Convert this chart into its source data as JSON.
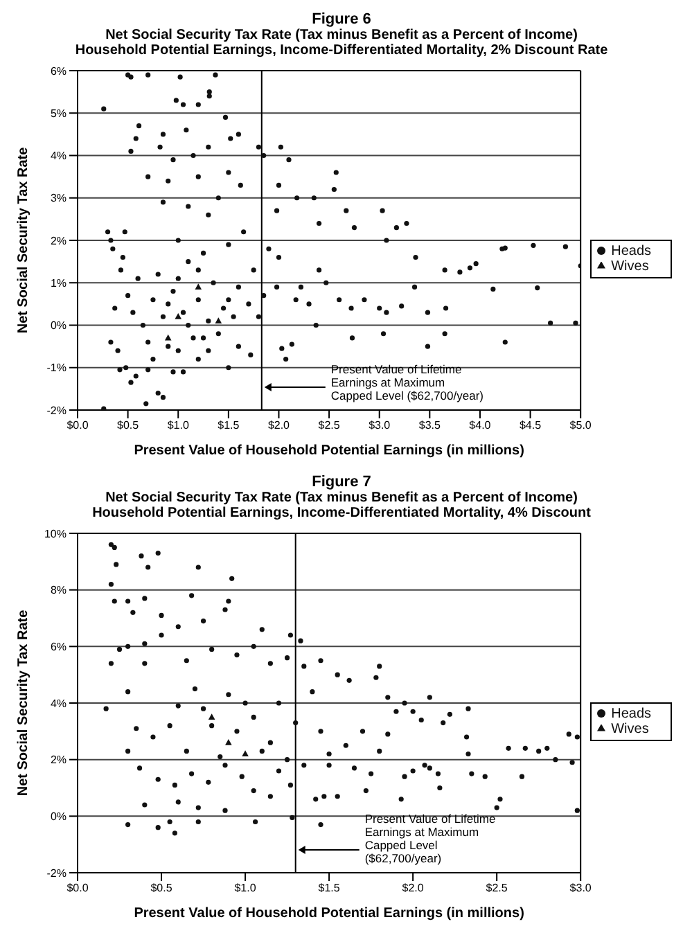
{
  "chart_data": [
    {
      "type": "scatter",
      "title": "Figure 6",
      "subtitle": "Net Social Security Tax Rate (Tax minus Benefit as a Percent of Income)\nHousehold Potential Earnings, Income-Differentiated Mortality, 2% Discount Rate",
      "xlabel": "Present Value of Household Potential Earnings (in millions)",
      "ylabel": "Net Social Security Tax Rate",
      "xlim": [
        0,
        5
      ],
      "xticks": [
        {
          "value": 0,
          "label": "$0.0"
        },
        {
          "value": 0.5,
          "label": "$0.5"
        },
        {
          "value": 1,
          "label": "$1.0"
        },
        {
          "value": 1.5,
          "label": "$1.5"
        },
        {
          "value": 2,
          "label": "$2.0"
        },
        {
          "value": 2.5,
          "label": "$2.5"
        },
        {
          "value": 3,
          "label": "$3.0"
        },
        {
          "value": 3.5,
          "label": "$3.5"
        },
        {
          "value": 4,
          "label": "$4.0"
        },
        {
          "value": 4.5,
          "label": "$4.5"
        },
        {
          "value": 5,
          "label": "$5.0"
        }
      ],
      "ylim": [
        -2,
        6
      ],
      "yticks": [
        {
          "value": -2,
          "label": "-2%"
        },
        {
          "value": -1,
          "label": "-1%"
        },
        {
          "value": 0,
          "label": "0%"
        },
        {
          "value": 1,
          "label": "1%"
        },
        {
          "value": 2,
          "label": "2%"
        },
        {
          "value": 3,
          "label": "3%"
        },
        {
          "value": 4,
          "label": "4%"
        },
        {
          "value": 5,
          "label": "5%"
        },
        {
          "value": 6,
          "label": "6%"
        }
      ],
      "grid": "y",
      "legend": "right",
      "ref_lines": [
        {
          "axis": "x",
          "value": 1.83,
          "label": "Present Value of Lifetime\nEarnings at Maximum\nCapped Level ($62,700/year)",
          "color": "#000000"
        }
      ],
      "series": [
        {
          "name": "Heads",
          "color": "#111111",
          "marker": "circle",
          "x": [
            0.26,
            0.5,
            0.53,
            0.7,
            1.02,
            1.37,
            1.31,
            1.31,
            0.98,
            1.2,
            1.05,
            1.47,
            0.61,
            0.85,
            1.08,
            1.6,
            1.52,
            0.58,
            0.82,
            0.53,
            1.8,
            2.02,
            2.1,
            1.85,
            0.7,
            0.9,
            1.2,
            1.5,
            1.62,
            2.0,
            2.18,
            2.35,
            2.57,
            2.55,
            1.98,
            2.4,
            2.67,
            2.75,
            3.03,
            3.17,
            3.27,
            3.07,
            3.36,
            3.35,
            3.48,
            3.65,
            3.8,
            3.9,
            3.96,
            4.22,
            4.25,
            4.53,
            4.85,
            5.0,
            4.13,
            4.57,
            4.7,
            4.95,
            4.25,
            3.65,
            3.48,
            3.66,
            3.22,
            3.07,
            3.0,
            3.04,
            2.73,
            2.85,
            2.72,
            2.6,
            2.47,
            2.4,
            2.3,
            2.37,
            2.22,
            2.07,
            2.03,
            2.13,
            2.17,
            1.98,
            1.9,
            2.0,
            1.72,
            1.6,
            1.5,
            1.3,
            1.2,
            1.05,
            0.95,
            0.85,
            0.8,
            0.68,
            0.26,
            0.48,
            0.42,
            0.53,
            0.58,
            0.7,
            0.33,
            0.4,
            0.3,
            0.33,
            0.35,
            0.45,
            0.47,
            0.43,
            0.37,
            0.5,
            0.55,
            0.6,
            0.65,
            0.7,
            0.75,
            0.8,
            0.85,
            0.9,
            0.95,
            1.0,
            1.05,
            1.1,
            1.15,
            1.2,
            1.25,
            1.3,
            1.35,
            1.4,
            1.45,
            1.5,
            1.55,
            1.6,
            1.65,
            1.7,
            1.75,
            1.8,
            1.85,
            1.0,
            1.1,
            0.85,
            1.3,
            1.4,
            0.95,
            1.15,
            1.3,
            1.0,
            1.2,
            0.9,
            1.1,
            0.75,
            1.25,
            1.5
          ],
          "values": [
            5.1,
            5.9,
            5.85,
            5.9,
            5.85,
            5.9,
            5.5,
            5.4,
            5.3,
            5.2,
            5.2,
            4.9,
            4.7,
            4.5,
            4.6,
            4.5,
            4.4,
            4.4,
            4.2,
            4.1,
            4.2,
            4.2,
            3.9,
            4.0,
            3.5,
            3.4,
            3.5,
            3.6,
            3.3,
            3.3,
            3.0,
            3.0,
            3.6,
            3.2,
            2.7,
            2.4,
            2.7,
            2.3,
            2.7,
            2.3,
            2.4,
            2.0,
            1.6,
            0.9,
            0.3,
            1.3,
            1.25,
            1.35,
            1.45,
            1.8,
            1.82,
            1.88,
            1.85,
            1.4,
            0.85,
            0.88,
            0.05,
            0.05,
            -0.4,
            -0.2,
            -0.5,
            0.4,
            0.45,
            0.3,
            0.4,
            -0.2,
            -0.3,
            0.6,
            0.4,
            0.6,
            1.0,
            1.3,
            0.5,
            0.0,
            0.9,
            -0.8,
            -0.55,
            -0.45,
            0.6,
            0.9,
            1.8,
            1.6,
            -0.7,
            -0.5,
            -1.0,
            -0.6,
            -0.8,
            -1.1,
            -1.1,
            -1.7,
            -1.6,
            -1.85,
            -1.97,
            -1.0,
            -1.05,
            -1.35,
            -1.2,
            -1.05,
            -0.4,
            -0.6,
            2.2,
            2.0,
            1.8,
            1.6,
            2.2,
            1.3,
            0.4,
            0.7,
            0.3,
            1.1,
            0.0,
            -0.4,
            0.6,
            1.2,
            0.2,
            -0.5,
            0.8,
            -0.6,
            0.3,
            1.5,
            -0.3,
            0.6,
            1.7,
            0.1,
            1.0,
            -0.2,
            0.4,
            1.9,
            0.2,
            0.9,
            2.2,
            0.5,
            1.3,
            0.2,
            0.7,
            2.0,
            2.8,
            2.9,
            2.6,
            3.0,
            3.9,
            4.0,
            4.2,
            1.1,
            1.3,
            0.5,
            0.0,
            -0.8,
            -0.3,
            0.6
          ]
        },
        {
          "name": "Wives",
          "color": "#111111",
          "marker": "triangle",
          "x": [
            1.0,
            1.2,
            1.4,
            0.9
          ],
          "values": [
            0.2,
            0.9,
            0.1,
            -0.3
          ]
        }
      ]
    },
    {
      "type": "scatter",
      "title": "Figure 7",
      "subtitle": "Net Social Security Tax Rate (Tax minus Benefit as a Percent of Income)\nHousehold Potential Earnings, Income-Differentiated Mortality, 4% Discount",
      "xlabel": "Present Value of Household Potential Earnings (in millions)",
      "ylabel": "Net Social Security Tax Rate",
      "xlim": [
        0,
        3
      ],
      "xticks": [
        {
          "value": 0,
          "label": "$0.0"
        },
        {
          "value": 0.5,
          "label": "$0.5"
        },
        {
          "value": 1,
          "label": "$1.0"
        },
        {
          "value": 1.5,
          "label": "$1.5"
        },
        {
          "value": 2,
          "label": "$2.0"
        },
        {
          "value": 2.5,
          "label": "$2.5"
        },
        {
          "value": 3,
          "label": "$3.0"
        }
      ],
      "ylim": [
        -2,
        10
      ],
      "yticks": [
        {
          "value": -2,
          "label": "-2%"
        },
        {
          "value": 0,
          "label": "0%"
        },
        {
          "value": 2,
          "label": "2%"
        },
        {
          "value": 4,
          "label": "4%"
        },
        {
          "value": 6,
          "label": "6%"
        },
        {
          "value": 8,
          "label": "8%"
        },
        {
          "value": 10,
          "label": "10%"
        }
      ],
      "grid": "y",
      "legend": "right",
      "ref_lines": [
        {
          "axis": "x",
          "value": 1.3,
          "label": "Present Value of Lifetime\nEarnings at Maximum\nCapped Level\n($62,700/year)",
          "color": "#000000"
        }
      ],
      "series": [
        {
          "name": "Heads",
          "color": "#111111",
          "marker": "circle",
          "x": [
            0.2,
            0.22,
            0.38,
            0.48,
            0.23,
            0.42,
            0.72,
            0.92,
            0.2,
            0.22,
            0.3,
            0.4,
            0.33,
            0.5,
            0.68,
            0.88,
            0.9,
            1.1,
            1.27,
            1.33,
            0.2,
            0.25,
            0.3,
            0.4,
            0.5,
            0.6,
            0.75,
            0.65,
            0.8,
            0.95,
            1.05,
            1.15,
            1.25,
            1.35,
            1.45,
            1.55,
            1.62,
            1.78,
            1.8,
            1.85,
            1.95,
            2.1,
            2.0,
            2.05,
            2.18,
            2.22,
            2.33,
            2.32,
            2.33,
            1.9,
            1.85,
            1.8,
            1.7,
            1.6,
            1.5,
            1.45,
            1.4,
            1.35,
            1.25,
            1.15,
            1.05,
            0.95,
            0.85,
            0.75,
            0.65,
            0.55,
            0.45,
            0.35,
            0.3,
            0.4,
            0.17,
            0.3,
            0.37,
            0.48,
            0.58,
            0.68,
            0.78,
            0.88,
            0.98,
            1.05,
            1.2,
            1.27,
            1.15,
            0.88,
            0.72,
            0.6,
            0.4,
            0.3,
            0.48,
            0.55,
            0.58,
            0.72,
            1.06,
            1.28,
            1.45,
            1.42,
            1.47,
            1.55,
            1.72,
            1.93,
            1.95,
            2.0,
            2.07,
            2.1,
            2.15,
            2.16,
            2.35,
            2.43,
            2.5,
            2.52,
            2.57,
            2.65,
            2.67,
            2.75,
            2.8,
            2.85,
            2.93,
            2.95,
            2.98,
            2.98,
            1.75,
            1.65,
            1.5,
            1.0,
            0.9,
            0.8,
            1.1,
            0.7,
            1.2,
            0.6,
            1.3
          ],
          "values": [
            9.6,
            9.5,
            9.2,
            9.3,
            8.9,
            8.8,
            8.8,
            8.4,
            8.2,
            7.6,
            7.6,
            7.7,
            7.2,
            7.1,
            7.8,
            7.3,
            7.6,
            6.6,
            6.4,
            6.2,
            5.4,
            5.9,
            6.0,
            6.1,
            6.4,
            6.7,
            6.9,
            5.5,
            5.9,
            5.7,
            6.0,
            5.4,
            5.6,
            5.3,
            5.5,
            5.0,
            4.8,
            4.9,
            5.3,
            4.2,
            4.0,
            4.2,
            3.7,
            3.4,
            3.3,
            3.6,
            3.8,
            2.8,
            2.2,
            3.7,
            2.9,
            2.3,
            3.0,
            2.5,
            2.2,
            3.0,
            4.4,
            1.8,
            2.0,
            2.6,
            3.5,
            3.0,
            2.1,
            3.8,
            2.3,
            3.2,
            2.8,
            3.1,
            4.4,
            5.4,
            3.8,
            2.3,
            1.7,
            1.3,
            1.1,
            1.5,
            1.2,
            1.8,
            1.4,
            0.9,
            1.6,
            1.1,
            0.7,
            0.2,
            0.3,
            0.5,
            0.4,
            -0.3,
            -0.4,
            -0.2,
            -0.6,
            -0.2,
            -0.2,
            -0.05,
            -0.3,
            0.6,
            0.7,
            0.7,
            0.9,
            0.6,
            1.4,
            1.6,
            1.8,
            1.7,
            1.5,
            1.0,
            1.5,
            1.4,
            0.3,
            0.6,
            2.4,
            1.4,
            2.4,
            2.3,
            2.4,
            2.0,
            2.9,
            1.9,
            2.8,
            0.2,
            1.5,
            1.7,
            1.8,
            4.0,
            4.3,
            3.2,
            2.3,
            4.5,
            4.0,
            3.9,
            3.3
          ]
        },
        {
          "name": "Wives",
          "color": "#111111",
          "marker": "triangle",
          "x": [
            0.9,
            1.0,
            0.8
          ],
          "values": [
            2.6,
            2.2,
            3.5
          ]
        }
      ]
    }
  ]
}
